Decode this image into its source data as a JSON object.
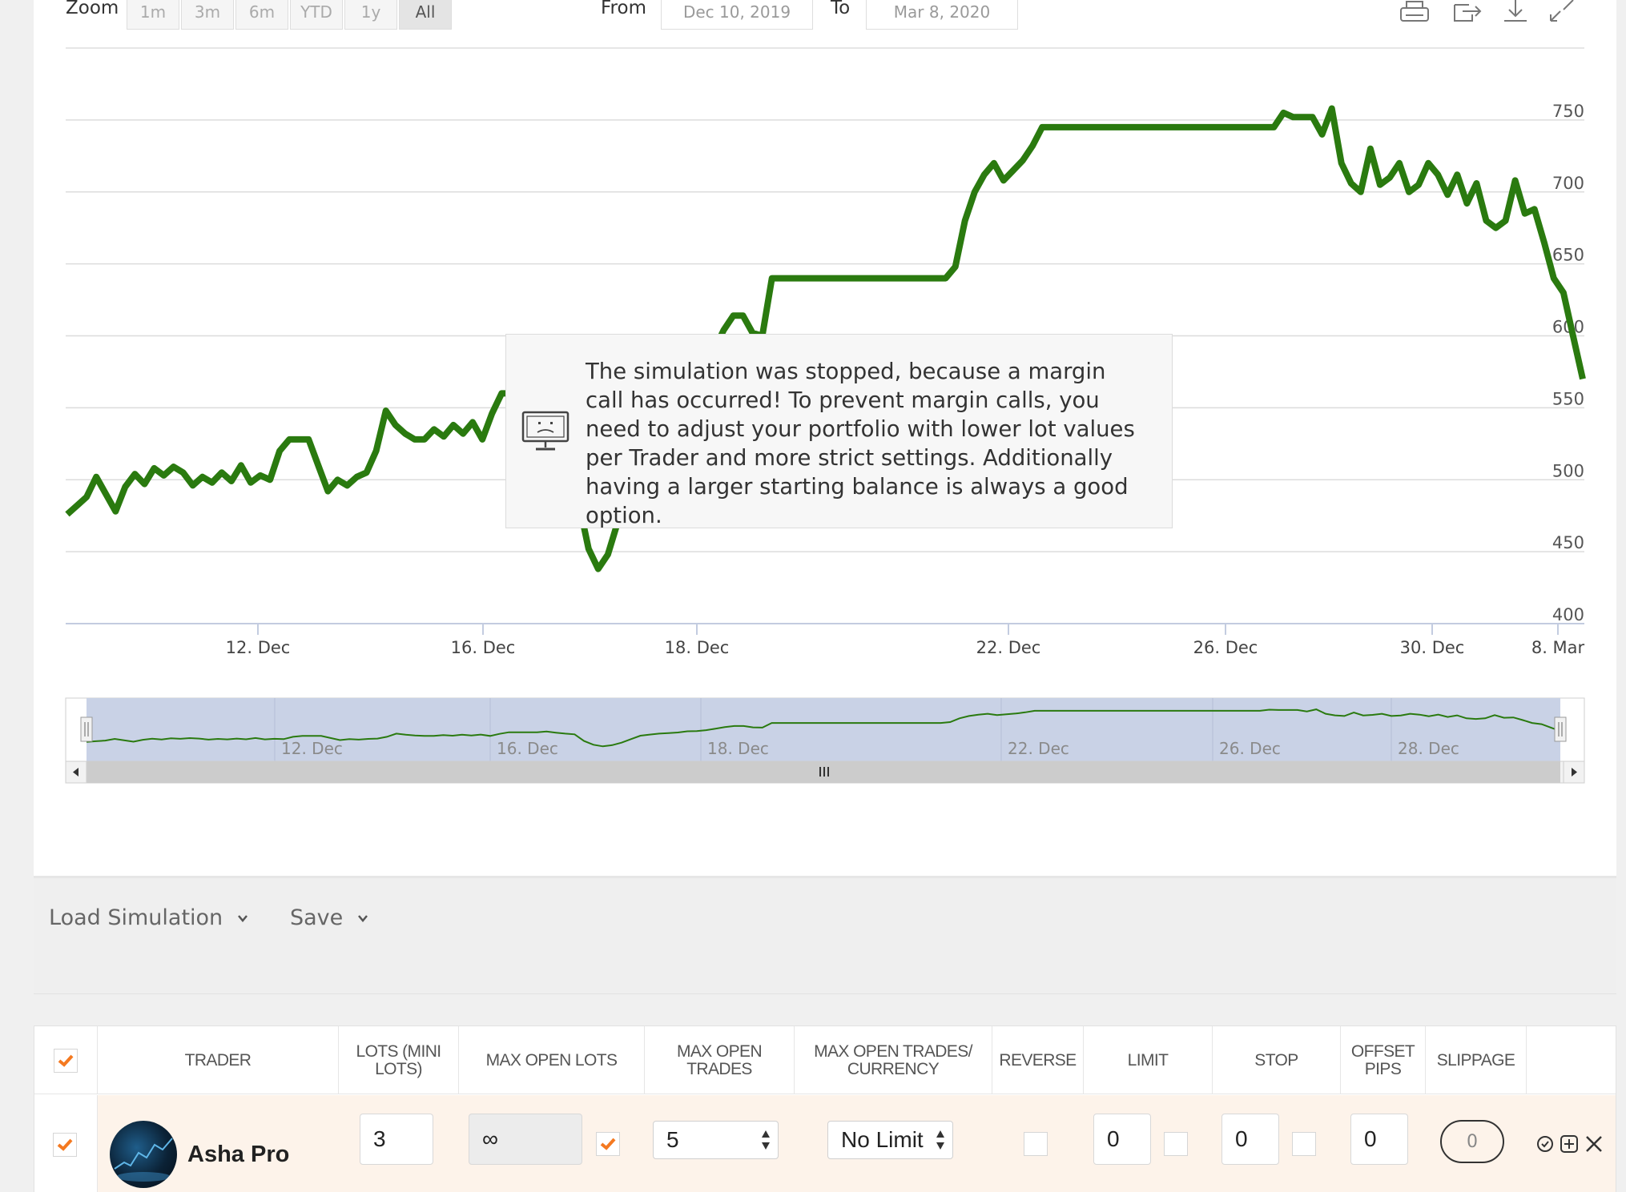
{
  "range_selector": {
    "zoom_label": "Zoom",
    "buttons": [
      "1m",
      "3m",
      "6m",
      "YTD",
      "1y",
      "All"
    ],
    "active": "All",
    "from_label": "From",
    "from_value": "Dec 10, 2019",
    "to_label": "To",
    "to_value": "Mar 8, 2020"
  },
  "toolbar_icons": [
    "print-icon",
    "export-icon",
    "download-icon",
    "fullscreen-icon"
  ],
  "chart_data": {
    "type": "line",
    "title": "",
    "xlabel": "",
    "ylabel": "",
    "x_tick_labels": [
      "12. Dec",
      "16. Dec",
      "18. Dec",
      "22. Dec",
      "26. Dec",
      "30. Dec",
      "8. Mar"
    ],
    "y_tick_labels": [
      "400",
      "450",
      "500",
      "550",
      "600",
      "650",
      "700",
      "750"
    ],
    "ylim": [
      400,
      800
    ],
    "grid": true,
    "line_color": "#2a7a0f",
    "series": [
      {
        "values": [
          476,
          482,
          488,
          502,
          490,
          478,
          495,
          504,
          497,
          508,
          503,
          509,
          505,
          496,
          502,
          498,
          505,
          499,
          510,
          498,
          503,
          500,
          520,
          528,
          528,
          528,
          510,
          492,
          500,
          496,
          502,
          505,
          520,
          548,
          538,
          532,
          528,
          528,
          535,
          530,
          538,
          532,
          540,
          528,
          546,
          560,
          560,
          560,
          560,
          566,
          556,
          548,
          542,
          484,
          452,
          438,
          448,
          470,
          500,
          530,
          540,
          548,
          553,
          558,
          568,
          570,
          578,
          590,
          604,
          614,
          614,
          602,
          600,
          640,
          640,
          640,
          640,
          640,
          640,
          640,
          640,
          640,
          640,
          640,
          640,
          640,
          640,
          640,
          640,
          640,
          640,
          640,
          648,
          680,
          700,
          712,
          720,
          708,
          715,
          722,
          732,
          745,
          745,
          745,
          745,
          745,
          745,
          745,
          745,
          745,
          745,
          745,
          745,
          745,
          745,
          745,
          745,
          745,
          745,
          745,
          745,
          745,
          745,
          745,
          745,
          745,
          755,
          752,
          752,
          752,
          740,
          758,
          720,
          706,
          700,
          730,
          705,
          710,
          720,
          700,
          705,
          720,
          712,
          698,
          712,
          692,
          706,
          680,
          675,
          680,
          708,
          685,
          688,
          665,
          640,
          630,
          600,
          570
        ]
      }
    ]
  },
  "navigator": {
    "labels": [
      "12. Dec",
      "16. Dec",
      "18. Dec",
      "22. Dec",
      "26. Dec",
      "28. Dec"
    ]
  },
  "modal": {
    "icon": "sad-monitor-icon",
    "message": "The simulation was stopped, because a margin call has occurred! To prevent margin calls, you need to adjust your portfolio with lower lot values per Trader and more strict settings. Additionally having a larger starting balance is always a good option."
  },
  "actions": {
    "load_label": "Load Simulation",
    "save_label": "Save"
  },
  "table": {
    "headers": [
      "TRADER",
      "LOTS (MINI LOTS)",
      "MAX OPEN LOTS",
      "MAX OPEN TRADES",
      "MAX OPEN TRADES/ CURRENCY",
      "REVERSE",
      "LIMIT",
      "STOP",
      "OFFSET PIPS",
      "SLIPPAGE"
    ],
    "row": {
      "trader_name": "Asha Pro",
      "lots": "3",
      "max_open_lots": "∞",
      "max_open_trades": "5",
      "max_open_trades_currency": "No Limit",
      "limit": "0",
      "stop": "0",
      "offset_pips": "0",
      "slippage": "0"
    },
    "accent_color": "#f47920"
  }
}
